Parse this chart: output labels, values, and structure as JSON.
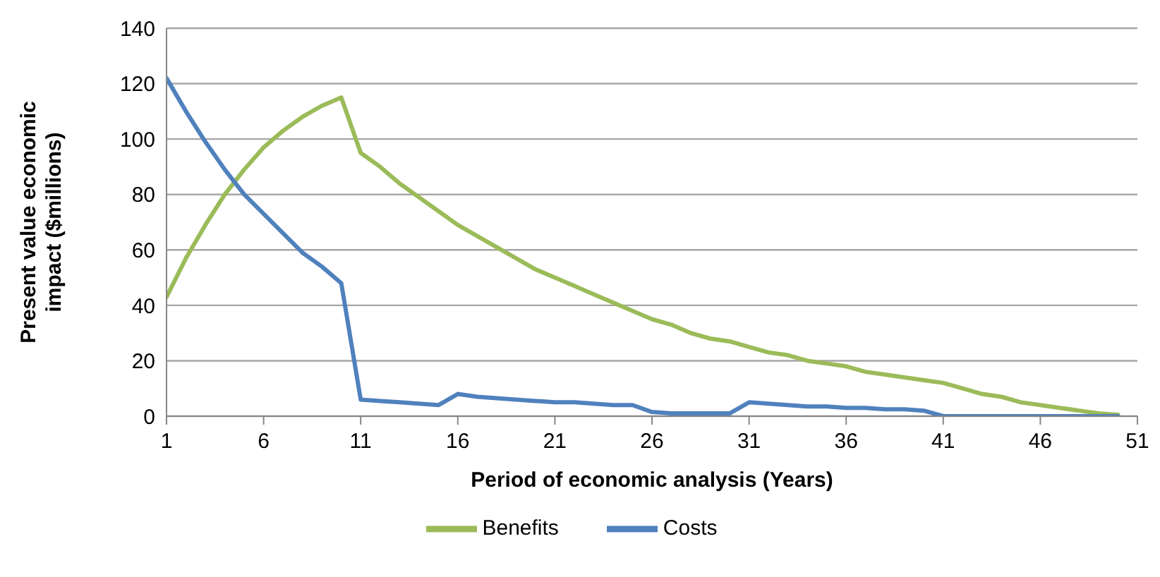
{
  "chart_data": {
    "type": "line",
    "xlabel": "Period of economic analysis (Years)",
    "ylabel": "Present value economic impact ($millions)",
    "x": [
      1,
      2,
      3,
      4,
      5,
      6,
      7,
      8,
      9,
      10,
      11,
      12,
      13,
      14,
      15,
      16,
      17,
      18,
      19,
      20,
      21,
      22,
      23,
      24,
      25,
      26,
      27,
      28,
      29,
      30,
      31,
      32,
      33,
      34,
      35,
      36,
      37,
      38,
      39,
      40,
      41,
      42,
      43,
      44,
      45,
      46,
      47,
      48,
      49,
      50
    ],
    "series": [
      {
        "name": "Benefits",
        "color": "#9bbb59",
        "values": [
          43,
          57,
          69,
          80,
          89,
          97,
          103,
          108,
          112,
          115,
          95,
          90,
          84,
          79,
          74,
          69,
          65,
          61,
          57,
          53,
          50,
          47,
          44,
          41,
          38,
          35,
          33,
          30,
          28,
          27,
          25,
          23,
          22,
          20,
          19,
          18,
          16,
          15,
          14,
          13,
          12,
          10,
          8,
          7,
          5,
          4,
          3,
          2,
          1,
          0.5
        ]
      },
      {
        "name": "Costs",
        "color": "#4f81bd",
        "values": [
          122,
          110,
          99,
          89,
          80,
          73,
          66,
          59,
          54,
          48,
          6,
          5.5,
          5,
          4.5,
          4,
          8,
          7,
          6.5,
          6,
          5.5,
          5,
          5,
          4.5,
          4,
          4,
          1.5,
          1,
          1,
          1,
          1,
          5,
          4.5,
          4,
          3.5,
          3.5,
          3,
          3,
          2.5,
          2.5,
          2,
          0,
          0,
          0,
          0,
          0,
          0,
          0,
          0,
          0,
          0
        ]
      }
    ],
    "xlim": [
      1,
      51
    ],
    "xticks": [
      1,
      6,
      11,
      16,
      21,
      26,
      31,
      36,
      41,
      46,
      51
    ],
    "ylim": [
      0,
      140
    ],
    "yticks": [
      0,
      20,
      40,
      60,
      80,
      100,
      120,
      140
    ],
    "grid": "y",
    "legend": "bottom",
    "marker": "none",
    "line_style": "solid"
  }
}
